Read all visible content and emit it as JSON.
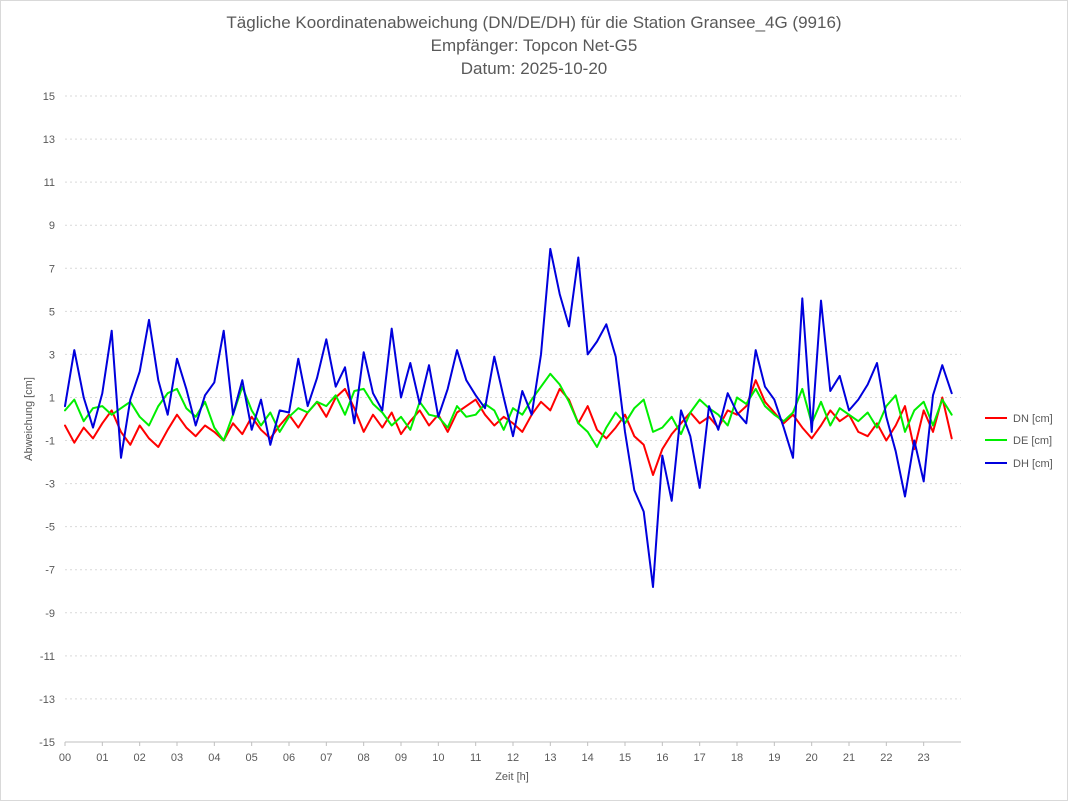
{
  "chart_data": {
    "type": "line",
    "title_lines": [
      "Tägliche Koordinatenabweichung (DN/DE/DH) für die Station Gransee_4G (9916)",
      "Empfänger: Topcon Net-G5",
      "Datum: 2025-10-20"
    ],
    "xlabel": "Zeit [h]",
    "ylabel": "Abweichung [cm]",
    "xlim": [
      0,
      24
    ],
    "ylim": [
      -15,
      15
    ],
    "x_tick_labels": [
      "00",
      "01",
      "02",
      "03",
      "04",
      "05",
      "06",
      "07",
      "08",
      "09",
      "10",
      "11",
      "12",
      "13",
      "14",
      "15",
      "16",
      "17",
      "18",
      "19",
      "20",
      "21",
      "22",
      "23"
    ],
    "y_tick_values": [
      15,
      13,
      11,
      9,
      7,
      5,
      3,
      1,
      -1,
      -3,
      -5,
      -7,
      -9,
      -11,
      -13,
      -15
    ],
    "y_tick_labels": [
      "15",
      "13",
      "11",
      "9",
      "7",
      "5",
      "3",
      "1",
      "-1",
      "-3",
      "-5",
      "-7",
      "-9",
      "-11",
      "-13",
      "-15"
    ],
    "grid": "horizontal-dashed",
    "legend_position": "right",
    "series": [
      {
        "name": "DN [cm]",
        "color": "#ff0000",
        "x": [
          0.0,
          0.25,
          0.5,
          0.75,
          1.0,
          1.25,
          1.5,
          1.75,
          2.0,
          2.25,
          2.5,
          2.75,
          3.0,
          3.25,
          3.5,
          3.75,
          4.0,
          4.25,
          4.5,
          4.75,
          5.0,
          5.25,
          5.5,
          5.75,
          6.0,
          6.25,
          6.5,
          6.75,
          7.0,
          7.25,
          7.5,
          7.75,
          8.0,
          8.25,
          8.5,
          8.75,
          9.0,
          9.25,
          9.5,
          9.75,
          10.0,
          10.25,
          10.5,
          10.75,
          11.0,
          11.25,
          11.5,
          11.75,
          12.0,
          12.25,
          12.5,
          12.75,
          13.0,
          13.25,
          13.5,
          13.75,
          14.0,
          14.25,
          14.5,
          14.75,
          15.0,
          15.25,
          15.5,
          15.75,
          16.0,
          16.25,
          16.5,
          16.75,
          17.0,
          17.25,
          17.5,
          17.75,
          18.0,
          18.25,
          18.5,
          18.75,
          19.0,
          19.25,
          19.5,
          19.75,
          20.0,
          20.25,
          20.5,
          20.75,
          21.0,
          21.25,
          21.5,
          21.75,
          22.0,
          22.25,
          22.5,
          22.75,
          23.0,
          23.25,
          23.5,
          23.75
        ],
        "values": [
          -0.3,
          -1.1,
          -0.4,
          -0.9,
          -0.2,
          0.4,
          -0.6,
          -1.2,
          -0.3,
          -0.9,
          -1.3,
          -0.5,
          0.2,
          -0.4,
          -0.8,
          -0.3,
          -0.6,
          -1.0,
          -0.2,
          -0.7,
          0.1,
          -0.5,
          -0.9,
          -0.3,
          0.2,
          -0.4,
          0.3,
          0.8,
          0.1,
          1.0,
          1.4,
          0.5,
          -0.6,
          0.2,
          -0.4,
          0.3,
          -0.7,
          -0.1,
          0.4,
          -0.3,
          0.2,
          -0.6,
          0.3,
          0.6,
          0.9,
          0.2,
          -0.3,
          0.1,
          -0.2,
          -0.6,
          0.2,
          0.8,
          0.4,
          1.4,
          0.9,
          -0.2,
          0.6,
          -0.5,
          -0.9,
          -0.4,
          0.2,
          -0.8,
          -1.2,
          -2.6,
          -1.4,
          -0.7,
          -0.2,
          0.3,
          -0.2,
          0.1,
          -0.4,
          0.4,
          0.2,
          0.6,
          1.8,
          0.8,
          0.3,
          -0.2,
          0.2,
          -0.4,
          -0.9,
          -0.3,
          0.4,
          -0.1,
          0.2,
          -0.6,
          -0.8,
          -0.2,
          -1.0,
          -0.3,
          0.6,
          -1.4,
          0.4,
          -0.6,
          1.0,
          -0.9
        ],
        "ignore_me": null
      },
      {
        "name": "DE [cm]",
        "color": "#00ee00",
        "x": [
          0.0,
          0.25,
          0.5,
          0.75,
          1.0,
          1.25,
          1.5,
          1.75,
          2.0,
          2.25,
          2.5,
          2.75,
          3.0,
          3.25,
          3.5,
          3.75,
          4.0,
          4.25,
          4.5,
          4.75,
          5.0,
          5.25,
          5.5,
          5.75,
          6.0,
          6.25,
          6.5,
          6.75,
          7.0,
          7.25,
          7.5,
          7.75,
          8.0,
          8.25,
          8.5,
          8.75,
          9.0,
          9.25,
          9.5,
          9.75,
          10.0,
          10.25,
          10.5,
          10.75,
          11.0,
          11.25,
          11.5,
          11.75,
          12.0,
          12.25,
          12.5,
          12.75,
          13.0,
          13.25,
          13.5,
          13.75,
          14.0,
          14.25,
          14.5,
          14.75,
          15.0,
          15.25,
          15.5,
          15.75,
          16.0,
          16.25,
          16.5,
          16.75,
          17.0,
          17.25,
          17.5,
          17.75,
          18.0,
          18.25,
          18.5,
          18.75,
          19.0,
          19.25,
          19.5,
          19.75,
          20.0,
          20.25,
          20.5,
          20.75,
          21.0,
          21.25,
          21.5,
          21.75,
          22.0,
          22.25,
          22.5,
          22.75,
          23.0,
          23.25,
          23.5,
          23.75
        ],
        "values": [
          0.4,
          0.9,
          -0.1,
          0.5,
          0.6,
          0.2,
          0.5,
          0.8,
          0.1,
          -0.3,
          0.6,
          1.2,
          1.4,
          0.5,
          0.1,
          0.8,
          -0.4,
          -1.0,
          0.2,
          1.5,
          0.4,
          -0.3,
          0.3,
          -0.6,
          0.1,
          0.5,
          0.3,
          0.8,
          0.6,
          1.1,
          0.2,
          1.3,
          1.4,
          0.7,
          0.3,
          -0.3,
          0.1,
          -0.5,
          0.8,
          0.2,
          0.1,
          -0.4,
          0.6,
          0.1,
          0.2,
          0.7,
          0.4,
          -0.5,
          0.5,
          0.2,
          0.9,
          1.5,
          2.1,
          1.6,
          0.8,
          -0.2,
          -0.6,
          -1.3,
          -0.4,
          0.3,
          -0.2,
          0.5,
          0.9,
          -0.6,
          -0.4,
          0.1,
          -0.7,
          0.3,
          0.9,
          0.5,
          0.2,
          -0.3,
          1.0,
          0.7,
          1.4,
          0.6,
          0.2,
          -0.1,
          0.3,
          1.4,
          -0.2,
          0.8,
          -0.3,
          0.5,
          0.2,
          -0.1,
          0.3,
          -0.4,
          0.6,
          1.1,
          -0.6,
          0.4,
          0.8,
          -0.3,
          0.9,
          0.2
        ],
        "ignore_me": null
      },
      {
        "name": "DH [cm]",
        "color": "#0000dd",
        "x": [
          0.0,
          0.25,
          0.5,
          0.75,
          1.0,
          1.25,
          1.5,
          1.75,
          2.0,
          2.25,
          2.5,
          2.75,
          3.0,
          3.25,
          3.5,
          3.75,
          4.0,
          4.25,
          4.5,
          4.75,
          5.0,
          5.25,
          5.5,
          5.75,
          6.0,
          6.25,
          6.5,
          6.75,
          7.0,
          7.25,
          7.5,
          7.75,
          8.0,
          8.25,
          8.5,
          8.75,
          9.0,
          9.25,
          9.5,
          9.75,
          10.0,
          10.25,
          10.5,
          10.75,
          11.0,
          11.25,
          11.5,
          11.75,
          12.0,
          12.25,
          12.5,
          12.75,
          13.0,
          13.25,
          13.5,
          13.75,
          14.0,
          14.25,
          14.5,
          14.75,
          15.0,
          15.25,
          15.5,
          15.75,
          16.0,
          16.25,
          16.5,
          16.75,
          17.0,
          17.25,
          17.5,
          17.75,
          18.0,
          18.25,
          18.5,
          18.75,
          19.0,
          19.25,
          19.5,
          19.75,
          20.0,
          20.25,
          20.5,
          20.75,
          21.0,
          21.25,
          21.5,
          21.75,
          22.0,
          22.25,
          22.5,
          22.75,
          23.0,
          23.25,
          23.5,
          23.75
        ],
        "values": [
          0.6,
          3.2,
          1.0,
          -0.4,
          1.2,
          4.1,
          -1.8,
          0.9,
          2.2,
          4.6,
          1.8,
          0.2,
          2.8,
          1.4,
          -0.3,
          1.1,
          1.7,
          4.1,
          0.2,
          1.8,
          -0.5,
          0.9,
          -1.2,
          0.4,
          0.3,
          2.8,
          0.6,
          1.9,
          3.7,
          1.5,
          2.4,
          -0.2,
          3.1,
          1.2,
          0.4,
          4.2,
          1.0,
          2.6,
          0.7,
          2.5,
          0.1,
          1.4,
          3.2,
          1.8,
          1.1,
          0.5,
          2.9,
          1.0,
          -0.8,
          1.3,
          0.2,
          3.0,
          7.9,
          5.8,
          4.3,
          7.5,
          3.0,
          3.6,
          4.4,
          2.9,
          -0.6,
          -3.3,
          -4.3,
          -7.8,
          -1.7,
          -3.8,
          0.4,
          -0.8,
          -3.2,
          0.6,
          -0.5,
          1.2,
          0.3,
          -0.2,
          3.2,
          1.5,
          0.9,
          -0.4,
          -1.8,
          5.6,
          -0.6,
          5.5,
          1.3,
          2.0,
          0.4,
          0.9,
          1.6,
          2.6,
          0.1,
          -1.5,
          -3.6,
          -1.0,
          -2.9,
          1.1,
          2.5,
          1.2
        ],
        "ignore_me": null
      }
    ]
  }
}
